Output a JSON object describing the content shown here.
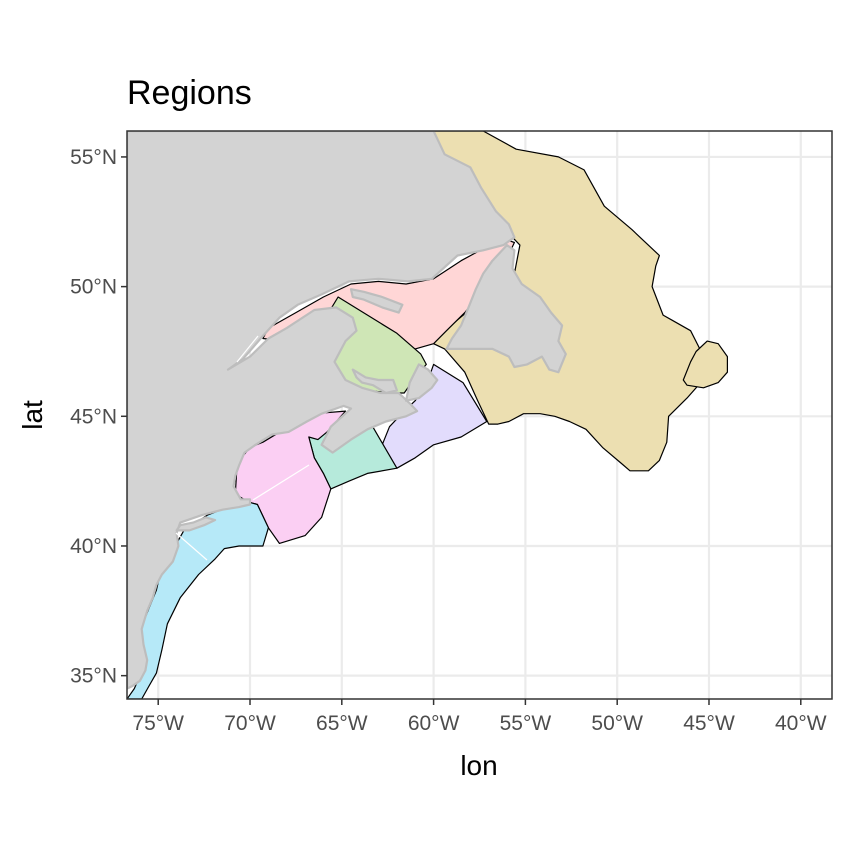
{
  "title": "Regions",
  "x_axis": {
    "label": "lon",
    "range": [
      -76.7,
      -38.3
    ],
    "ticks": [
      {
        "value": -75,
        "label": "75°W"
      },
      {
        "value": -70,
        "label": "70°W"
      },
      {
        "value": -65,
        "label": "65°W"
      },
      {
        "value": -60,
        "label": "60°W"
      },
      {
        "value": -55,
        "label": "55°W"
      },
      {
        "value": -50,
        "label": "50°W"
      },
      {
        "value": -45,
        "label": "45°W"
      },
      {
        "value": -40,
        "label": "40°W"
      }
    ]
  },
  "y_axis": {
    "label": "lat",
    "range": [
      34.1,
      56.0
    ],
    "ticks": [
      {
        "value": 35,
        "label": "35°N"
      },
      {
        "value": 40,
        "label": "40°N"
      },
      {
        "value": 45,
        "label": "45°N"
      },
      {
        "value": 50,
        "label": "50°N"
      },
      {
        "value": 55,
        "label": "55°N"
      }
    ]
  },
  "style": {
    "panel_background": "#ffffff",
    "grid_color": "#ebebeb",
    "land_fill": "#d3d3d3",
    "land_outline": "#bdbdbd",
    "grid": true,
    "legend": "none"
  },
  "regions": [
    {
      "id": "labrador-newfoundland-shelf",
      "fill": "#ecdfb1",
      "lonlat": [
        [
          -57.3,
          56.0
        ],
        [
          -55.5,
          55.3
        ],
        [
          -53.2,
          55.0
        ],
        [
          -51.8,
          54.5
        ],
        [
          -50.7,
          53.1
        ],
        [
          -49.2,
          52.2
        ],
        [
          -47.7,
          51.2
        ],
        [
          -47.9,
          50.8
        ],
        [
          -48.1,
          50.0
        ],
        [
          -47.5,
          48.9
        ],
        [
          -47.0,
          48.7
        ],
        [
          -46.0,
          48.3
        ],
        [
          -45.5,
          47.6
        ],
        [
          -45.3,
          47.1
        ],
        [
          -45.2,
          46.5
        ],
        [
          -46.2,
          45.7
        ],
        [
          -47.2,
          45.0
        ],
        [
          -47.3,
          44.0
        ],
        [
          -47.7,
          43.3
        ],
        [
          -48.3,
          42.9
        ],
        [
          -49.3,
          42.9
        ],
        [
          -49.8,
          43.2
        ],
        [
          -50.8,
          43.8
        ],
        [
          -51.7,
          44.5
        ],
        [
          -52.6,
          44.8
        ],
        [
          -53.4,
          45.0
        ],
        [
          -54.2,
          45.1
        ],
        [
          -55.1,
          45.1
        ],
        [
          -55.9,
          44.8
        ],
        [
          -56.5,
          44.7
        ],
        [
          -57.0,
          44.7
        ],
        [
          -57.6,
          45.6
        ],
        [
          -58.3,
          46.7
        ],
        [
          -59.4,
          47.6
        ],
        [
          -60.0,
          47.8
        ],
        [
          -60.5,
          48.4
        ],
        [
          -58.9,
          48.6
        ],
        [
          -57.2,
          49.6
        ],
        [
          -55.6,
          50.5
        ],
        [
          -55.3,
          51.6
        ],
        [
          -55.7,
          51.9
        ],
        [
          -56.8,
          52.0
        ],
        [
          -58.1,
          53.2
        ],
        [
          -59.6,
          55.0
        ],
        [
          -60.0,
          56.0
        ]
      ]
    },
    {
      "id": "flemish-cap",
      "fill": "#ecdfb1",
      "lonlat": [
        [
          -46.4,
          46.4
        ],
        [
          -46.0,
          47.1
        ],
        [
          -45.7,
          47.5
        ],
        [
          -45.1,
          47.9
        ],
        [
          -44.5,
          47.8
        ],
        [
          -44.0,
          47.3
        ],
        [
          -44.0,
          46.7
        ],
        [
          -44.5,
          46.3
        ],
        [
          -45.3,
          46.1
        ],
        [
          -46.2,
          46.2
        ]
      ]
    },
    {
      "id": "gulf-of-st-lawrence",
      "fill": "#ffd6d6",
      "lonlat": [
        [
          -69.0,
          48.4
        ],
        [
          -67.5,
          49.0
        ],
        [
          -66.0,
          49.6
        ],
        [
          -64.5,
          50.1
        ],
        [
          -63.0,
          50.2
        ],
        [
          -61.5,
          50.1
        ],
        [
          -60.0,
          50.3
        ],
        [
          -58.5,
          51.0
        ],
        [
          -57.2,
          51.5
        ],
        [
          -56.0,
          51.8
        ],
        [
          -55.6,
          51.7
        ],
        [
          -56.0,
          51.1
        ],
        [
          -56.8,
          50.5
        ],
        [
          -57.4,
          49.8
        ],
        [
          -58.3,
          49.0
        ],
        [
          -59.3,
          48.3
        ],
        [
          -60.0,
          47.8
        ],
        [
          -61.0,
          47.6
        ],
        [
          -62.0,
          47.8
        ],
        [
          -63.3,
          48.2
        ],
        [
          -64.3,
          48.5
        ],
        [
          -65.5,
          48.6
        ],
        [
          -66.7,
          48.3
        ],
        [
          -68.0,
          47.9
        ],
        [
          -69.3,
          48.0
        ]
      ]
    },
    {
      "id": "southern-gulf",
      "fill": "#cfe6b6",
      "lonlat": [
        [
          -65.2,
          49.6
        ],
        [
          -62.0,
          48.2
        ],
        [
          -60.7,
          47.4
        ],
        [
          -60.4,
          47.0
        ],
        [
          -61.0,
          46.5
        ],
        [
          -61.6,
          45.9
        ],
        [
          -62.5,
          45.9
        ],
        [
          -63.5,
          46.0
        ],
        [
          -64.7,
          46.2
        ],
        [
          -65.5,
          47.0
        ],
        [
          -66.3,
          47.8
        ],
        [
          -65.8,
          48.9
        ]
      ]
    },
    {
      "id": "scotian-shelf-east",
      "fill": "#e2dcfc",
      "lonlat": [
        [
          -60.0,
          47.0
        ],
        [
          -58.4,
          46.3
        ],
        [
          -57.1,
          44.8
        ],
        [
          -58.5,
          44.2
        ],
        [
          -60.0,
          43.9
        ],
        [
          -61.0,
          43.4
        ],
        [
          -62.0,
          43.0
        ],
        [
          -62.8,
          43.2
        ],
        [
          -62.8,
          43.9
        ],
        [
          -62.4,
          44.6
        ],
        [
          -61.6,
          45.2
        ],
        [
          -61.0,
          45.6
        ],
        [
          -60.4,
          46.2
        ]
      ]
    },
    {
      "id": "scotian-shelf-west",
      "fill": "#b6eadb",
      "lonlat": [
        [
          -63.4,
          44.7
        ],
        [
          -62.0,
          43.0
        ],
        [
          -63.6,
          42.8
        ],
        [
          -64.6,
          42.5
        ],
        [
          -65.6,
          42.2
        ],
        [
          -66.0,
          42.8
        ],
        [
          -66.5,
          43.4
        ],
        [
          -66.8,
          44.2
        ],
        [
          -66.2,
          44.6
        ],
        [
          -65.0,
          44.7
        ]
      ]
    },
    {
      "id": "gulf-of-maine",
      "fill": "#fbcff3",
      "lonlat": [
        [
          -66.3,
          44.1
        ],
        [
          -65.8,
          44.4
        ],
        [
          -64.8,
          45.2
        ],
        [
          -66.5,
          45.1
        ],
        [
          -67.9,
          44.6
        ],
        [
          -69.3,
          44.0
        ],
        [
          -70.0,
          43.8
        ],
        [
          -70.7,
          43.2
        ],
        [
          -70.8,
          42.0
        ],
        [
          -70.1,
          41.7
        ],
        [
          -69.6,
          41.6
        ],
        [
          -69.0,
          40.7
        ],
        [
          -68.4,
          40.1
        ],
        [
          -67.0,
          40.4
        ],
        [
          -66.1,
          41.1
        ],
        [
          -65.6,
          42.2
        ],
        [
          -66.0,
          42.8
        ],
        [
          -66.5,
          43.4
        ],
        [
          -66.8,
          44.2
        ]
      ]
    },
    {
      "id": "mid-atlantic-bight",
      "fill": "#b6e9f8",
      "lonlat": [
        [
          -71.2,
          41.5
        ],
        [
          -72.3,
          41.2
        ],
        [
          -73.6,
          40.6
        ],
        [
          -74.0,
          40.1
        ],
        [
          -74.3,
          39.3
        ],
        [
          -74.9,
          38.9
        ],
        [
          -75.1,
          38.3
        ],
        [
          -75.5,
          37.6
        ],
        [
          -75.9,
          36.9
        ],
        [
          -76.0,
          36.2
        ],
        [
          -75.9,
          35.6
        ],
        [
          -76.0,
          35.0
        ],
        [
          -76.3,
          34.5
        ],
        [
          -76.7,
          34.1
        ],
        [
          -75.9,
          34.1
        ],
        [
          -75.5,
          34.6
        ],
        [
          -75.1,
          35.1
        ],
        [
          -74.8,
          36.0
        ],
        [
          -74.5,
          37.0
        ],
        [
          -73.8,
          38.0
        ],
        [
          -72.8,
          38.9
        ],
        [
          -71.9,
          39.5
        ],
        [
          -71.4,
          39.9
        ],
        [
          -70.6,
          40.0
        ],
        [
          -69.3,
          40.0
        ],
        [
          -69.0,
          40.7
        ],
        [
          -69.6,
          41.6
        ],
        [
          -70.1,
          41.7
        ],
        [
          -70.6,
          41.5
        ]
      ]
    }
  ],
  "land": [
    {
      "id": "north-america",
      "lonlat": [
        [
          -76.7,
          56.0
        ],
        [
          -60.0,
          56.0
        ],
        [
          -59.4,
          55.1
        ],
        [
          -58.0,
          54.6
        ],
        [
          -57.4,
          53.8
        ],
        [
          -56.6,
          52.9
        ],
        [
          -55.9,
          52.4
        ],
        [
          -55.6,
          51.9
        ],
        [
          -56.2,
          51.6
        ],
        [
          -57.3,
          51.4
        ],
        [
          -58.7,
          51.2
        ],
        [
          -60.1,
          50.3
        ],
        [
          -61.4,
          50.2
        ],
        [
          -63.0,
          50.3
        ],
        [
          -64.6,
          50.2
        ],
        [
          -66.1,
          49.7
        ],
        [
          -67.4,
          49.3
        ],
        [
          -68.4,
          48.8
        ],
        [
          -69.3,
          48.1
        ],
        [
          -70.4,
          47.2
        ],
        [
          -71.2,
          46.8
        ],
        [
          -70.0,
          47.3
        ],
        [
          -69.0,
          48.0
        ],
        [
          -68.0,
          48.4
        ],
        [
          -66.5,
          49.1
        ],
        [
          -65.3,
          49.2
        ],
        [
          -64.4,
          48.8
        ],
        [
          -64.2,
          48.3
        ],
        [
          -64.8,
          47.9
        ],
        [
          -65.4,
          47.1
        ],
        [
          -64.8,
          46.4
        ],
        [
          -63.9,
          46.1
        ],
        [
          -62.9,
          45.9
        ],
        [
          -61.9,
          45.9
        ],
        [
          -61.3,
          45.5
        ],
        [
          -60.9,
          45.2
        ],
        [
          -61.5,
          45.0
        ],
        [
          -62.6,
          44.8
        ],
        [
          -63.6,
          44.5
        ],
        [
          -64.5,
          44.1
        ],
        [
          -65.5,
          43.6
        ],
        [
          -66.1,
          43.9
        ],
        [
          -65.6,
          44.6
        ],
        [
          -64.5,
          45.3
        ],
        [
          -64.9,
          45.4
        ],
        [
          -66.1,
          45.1
        ],
        [
          -66.9,
          44.8
        ],
        [
          -67.9,
          44.4
        ],
        [
          -68.8,
          44.3
        ],
        [
          -69.7,
          43.9
        ],
        [
          -70.3,
          43.6
        ],
        [
          -70.6,
          43.1
        ],
        [
          -70.8,
          42.7
        ],
        [
          -70.9,
          42.3
        ],
        [
          -70.5,
          41.8
        ],
        [
          -70.0,
          41.8
        ],
        [
          -70.0,
          41.6
        ],
        [
          -70.6,
          41.5
        ],
        [
          -71.5,
          41.4
        ],
        [
          -72.6,
          41.2
        ],
        [
          -73.8,
          40.9
        ],
        [
          -74.0,
          40.5
        ],
        [
          -73.9,
          40.0
        ],
        [
          -74.2,
          39.4
        ],
        [
          -74.8,
          38.9
        ],
        [
          -75.1,
          38.5
        ],
        [
          -75.3,
          38.0
        ],
        [
          -75.6,
          37.5
        ],
        [
          -75.9,
          36.8
        ],
        [
          -75.8,
          36.2
        ],
        [
          -75.6,
          35.6
        ],
        [
          -75.7,
          35.2
        ],
        [
          -76.0,
          34.8
        ],
        [
          -76.4,
          34.6
        ],
        [
          -76.7,
          34.5
        ]
      ]
    },
    {
      "id": "newfoundland",
      "lonlat": [
        [
          -59.3,
          47.6
        ],
        [
          -59.0,
          48.0
        ],
        [
          -58.5,
          48.5
        ],
        [
          -58.1,
          49.2
        ],
        [
          -57.7,
          49.9
        ],
        [
          -57.3,
          50.5
        ],
        [
          -56.8,
          51.0
        ],
        [
          -56.0,
          51.6
        ],
        [
          -55.6,
          51.4
        ],
        [
          -55.7,
          50.7
        ],
        [
          -55.2,
          50.1
        ],
        [
          -54.2,
          49.6
        ],
        [
          -53.6,
          49.0
        ],
        [
          -53.0,
          48.5
        ],
        [
          -53.2,
          47.9
        ],
        [
          -52.8,
          47.4
        ],
        [
          -53.2,
          46.7
        ],
        [
          -53.7,
          46.8
        ],
        [
          -54.1,
          47.3
        ],
        [
          -54.9,
          47.0
        ],
        [
          -55.6,
          46.9
        ],
        [
          -55.9,
          47.3
        ],
        [
          -56.8,
          47.6
        ],
        [
          -57.9,
          47.6
        ],
        [
          -59.0,
          47.6
        ]
      ]
    },
    {
      "id": "prince-edward-island",
      "lonlat": [
        [
          -64.4,
          46.8
        ],
        [
          -63.7,
          46.5
        ],
        [
          -63.0,
          46.4
        ],
        [
          -62.2,
          46.4
        ],
        [
          -62.0,
          46.0
        ],
        [
          -62.6,
          45.9
        ],
        [
          -63.3,
          46.2
        ],
        [
          -63.9,
          46.3
        ],
        [
          -64.2,
          46.5
        ]
      ]
    },
    {
      "id": "anticosti-island",
      "lonlat": [
        [
          -64.5,
          49.9
        ],
        [
          -63.8,
          49.8
        ],
        [
          -62.8,
          49.6
        ],
        [
          -61.7,
          49.3
        ],
        [
          -61.9,
          49.0
        ],
        [
          -62.8,
          49.2
        ],
        [
          -63.8,
          49.5
        ],
        [
          -64.4,
          49.6
        ]
      ]
    },
    {
      "id": "cape-breton-island",
      "lonlat": [
        [
          -61.5,
          45.6
        ],
        [
          -60.8,
          45.7
        ],
        [
          -60.1,
          46.1
        ],
        [
          -59.8,
          46.4
        ],
        [
          -60.3,
          46.8
        ],
        [
          -60.8,
          47.0
        ],
        [
          -61.3,
          46.3
        ]
      ]
    },
    {
      "id": "long-island",
      "lonlat": [
        [
          -74.0,
          40.6
        ],
        [
          -73.3,
          40.6
        ],
        [
          -72.5,
          40.8
        ],
        [
          -71.9,
          41.0
        ],
        [
          -72.4,
          41.1
        ],
        [
          -73.1,
          40.9
        ],
        [
          -73.8,
          40.8
        ]
      ]
    }
  ]
}
